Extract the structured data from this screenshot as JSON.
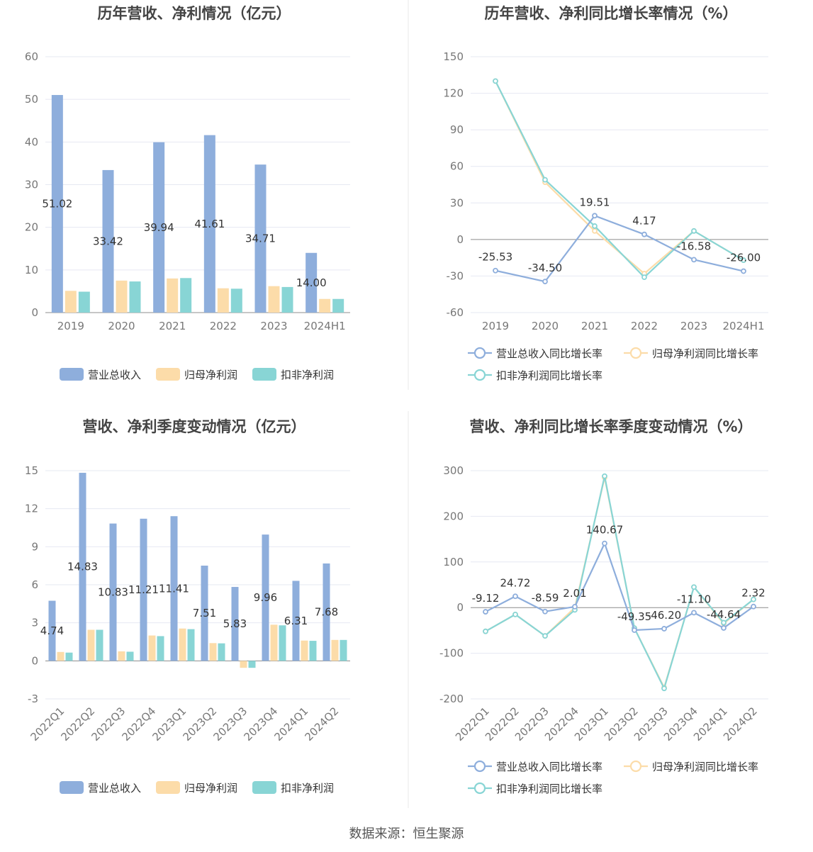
{
  "source": "数据来源：恒生聚源",
  "colors": {
    "revenue": "#8eaedc",
    "net_profit": "#fcdca9",
    "deducted_profit": "#88d5d5"
  },
  "legends": {
    "bars": [
      "营业总收入",
      "归母净利润",
      "扣非净利润"
    ],
    "lines": [
      "营业总收入同比增长率",
      "归母净利润同比增长率",
      "扣非净利润同比增长率"
    ]
  },
  "chart_data": [
    {
      "id": "annual-amounts",
      "type": "bar",
      "title": "历年营收、净利情况（亿元）",
      "categories": [
        "2019",
        "2020",
        "2021",
        "2022",
        "2023",
        "2024H1"
      ],
      "ylim": [
        0,
        60
      ],
      "yticks": [
        0,
        10,
        20,
        30,
        40,
        50,
        60
      ],
      "series": [
        {
          "name": "营业总收入",
          "values": [
            51.02,
            33.42,
            39.94,
            41.61,
            34.71,
            14.0
          ],
          "labels": [
            "51.02",
            "33.42",
            "39.94",
            "41.61",
            "34.71",
            "14.00"
          ]
        },
        {
          "name": "归母净利润",
          "values": [
            5.1,
            7.5,
            8.0,
            5.7,
            6.2,
            3.2
          ]
        },
        {
          "name": "扣非净利润",
          "values": [
            4.9,
            7.3,
            8.1,
            5.6,
            6.0,
            3.2
          ]
        }
      ]
    },
    {
      "id": "annual-growth",
      "type": "line",
      "title": "历年营收、净利同比增长率情况（%）",
      "categories": [
        "2019",
        "2020",
        "2021",
        "2022",
        "2023",
        "2024H1"
      ],
      "ylim": [
        -60,
        150
      ],
      "yticks": [
        -60,
        -30,
        0,
        30,
        60,
        90,
        120,
        150
      ],
      "series": [
        {
          "name": "营业总收入同比增长率",
          "values": [
            -25.53,
            -34.5,
            19.51,
            4.17,
            -16.58,
            -26.0
          ],
          "labels": [
            "-25.53",
            "-34.50",
            "19.51",
            "4.17",
            "-16.58",
            "-26.00"
          ]
        },
        {
          "name": "归母净利润同比增长率",
          "values": [
            130,
            47,
            7,
            -28,
            7,
            -17
          ]
        },
        {
          "name": "扣非净利润同比增长率",
          "values": [
            130,
            49,
            11,
            -31,
            7,
            -17
          ]
        }
      ]
    },
    {
      "id": "quarterly-amounts",
      "type": "bar",
      "title": "营收、净利季度变动情况（亿元）",
      "categories": [
        "2022Q1",
        "2022Q2",
        "2022Q3",
        "2022Q4",
        "2023Q1",
        "2023Q2",
        "2023Q3",
        "2023Q4",
        "2024Q1",
        "2024Q2"
      ],
      "ylim": [
        -3,
        15
      ],
      "yticks": [
        -3,
        0,
        3,
        6,
        9,
        12,
        15
      ],
      "series": [
        {
          "name": "营业总收入",
          "values": [
            4.74,
            14.83,
            10.83,
            11.21,
            11.41,
            7.51,
            5.83,
            9.96,
            6.31,
            7.68
          ],
          "labels": [
            "4.74",
            "14.83",
            "10.83",
            "11.21",
            "11.41",
            "7.51",
            "5.83",
            "9.96",
            "6.31",
            "7.68"
          ]
        },
        {
          "name": "归母净利润",
          "values": [
            0.7,
            2.45,
            0.75,
            2.0,
            2.55,
            1.4,
            -0.55,
            2.85,
            1.6,
            1.65
          ]
        },
        {
          "name": "扣非净利润",
          "values": [
            0.65,
            2.45,
            0.72,
            1.95,
            2.5,
            1.38,
            -0.55,
            2.8,
            1.58,
            1.65
          ]
        }
      ]
    },
    {
      "id": "quarterly-growth",
      "type": "line",
      "title": "营收、净利同比增长率季度变动情况（%）",
      "categories": [
        "2022Q1",
        "2022Q2",
        "2022Q3",
        "2022Q4",
        "2023Q1",
        "2023Q2",
        "2023Q3",
        "2023Q4",
        "2024Q1",
        "2024Q2"
      ],
      "ylim": [
        -200,
        300
      ],
      "yticks": [
        -200,
        -100,
        0,
        100,
        200,
        300
      ],
      "series": [
        {
          "name": "营业总收入同比增长率",
          "values": [
            -9.12,
            24.72,
            -8.59,
            2.01,
            140.67,
            -49.35,
            -46.2,
            -11.1,
            -44.64,
            2.32
          ],
          "labels": [
            "-9.12",
            "24.72",
            "-8.59",
            "2.01",
            "140.67",
            "-49.35",
            "-46.20",
            "-11.10",
            "-44.64",
            "2.32"
          ]
        },
        {
          "name": "归母净利润同比增长率",
          "values": [
            -52,
            -15,
            -62,
            0,
            285,
            -45,
            -175,
            45,
            -35,
            18
          ]
        },
        {
          "name": "扣非净利润同比增长率",
          "values": [
            -52,
            -15,
            -62,
            -5,
            288,
            -45,
            -177,
            45,
            -33,
            18
          ]
        }
      ]
    }
  ]
}
